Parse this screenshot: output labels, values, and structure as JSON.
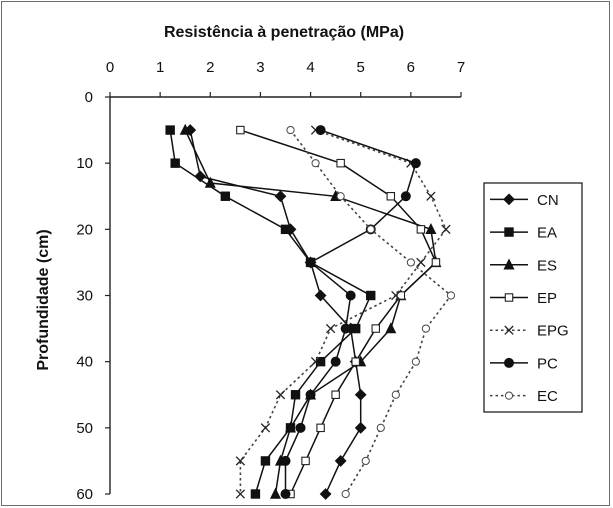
{
  "chart_data": {
    "type": "line",
    "title": "Resistência à penetração (MPa)",
    "xlabel": "Resistência à penetração (MPa)",
    "ylabel": "Profundidade (cm)",
    "x_axis_position": "top",
    "xlim": [
      0,
      7
    ],
    "ylim": [
      0,
      60
    ],
    "y_reversed": true,
    "xticks": [
      "0",
      "1",
      "2",
      "3",
      "4",
      "5",
      "6",
      "7"
    ],
    "yticks": [
      "0",
      "10",
      "20",
      "30",
      "40",
      "50",
      "60"
    ],
    "legend_position": "right",
    "grid": false,
    "series": [
      {
        "name": "CN",
        "marker": "diamond",
        "dash": "solid",
        "points": [
          [
            1.6,
            5
          ],
          [
            1.8,
            12
          ],
          [
            3.4,
            15
          ],
          [
            3.6,
            20
          ],
          [
            4.0,
            25
          ],
          [
            4.2,
            30
          ],
          [
            4.8,
            35
          ],
          [
            4.9,
            40
          ],
          [
            5.0,
            45
          ],
          [
            5.0,
            50
          ],
          [
            4.6,
            55
          ],
          [
            4.3,
            60
          ]
        ]
      },
      {
        "name": "EA",
        "marker": "square",
        "dash": "solid",
        "points": [
          [
            1.2,
            5
          ],
          [
            1.3,
            10
          ],
          [
            2.3,
            15
          ],
          [
            3.5,
            20
          ],
          [
            4.0,
            25
          ],
          [
            5.2,
            30
          ],
          [
            4.9,
            35
          ],
          [
            4.2,
            40
          ],
          [
            3.7,
            45
          ],
          [
            3.6,
            50
          ],
          [
            3.1,
            55
          ],
          [
            2.9,
            60
          ]
        ]
      },
      {
        "name": "ES",
        "marker": "triangle",
        "dash": "solid",
        "points": [
          [
            1.5,
            5
          ],
          [
            2.0,
            13
          ],
          [
            4.5,
            15
          ],
          [
            6.4,
            20
          ],
          [
            6.5,
            25
          ],
          [
            5.8,
            30
          ],
          [
            5.6,
            35
          ],
          [
            5.0,
            40
          ],
          [
            4.0,
            45
          ],
          [
            3.6,
            50
          ],
          [
            3.4,
            55
          ],
          [
            3.3,
            60
          ]
        ]
      },
      {
        "name": "EP",
        "marker": "open-square",
        "dash": "solid",
        "points": [
          [
            2.6,
            5
          ],
          [
            4.6,
            10
          ],
          [
            5.6,
            15
          ],
          [
            6.2,
            20
          ],
          [
            6.5,
            25
          ],
          [
            5.8,
            30
          ],
          [
            5.3,
            35
          ],
          [
            4.9,
            40
          ],
          [
            4.5,
            45
          ],
          [
            4.2,
            50
          ],
          [
            3.9,
            55
          ],
          [
            3.6,
            60
          ]
        ]
      },
      {
        "name": "EPG",
        "marker": "x",
        "dash": "dotted",
        "points": [
          [
            4.1,
            5
          ],
          [
            6.0,
            10
          ],
          [
            6.4,
            15
          ],
          [
            6.7,
            20
          ],
          [
            6.2,
            25
          ],
          [
            5.7,
            30
          ],
          [
            4.4,
            35
          ],
          [
            4.1,
            40
          ],
          [
            3.4,
            45
          ],
          [
            3.1,
            50
          ],
          [
            2.6,
            55
          ],
          [
            2.6,
            60
          ]
        ]
      },
      {
        "name": "PC",
        "marker": "circle",
        "dash": "solid",
        "points": [
          [
            4.2,
            5
          ],
          [
            6.1,
            10
          ],
          [
            5.9,
            15
          ],
          [
            5.2,
            20
          ],
          [
            4.0,
            25
          ],
          [
            4.8,
            30
          ],
          [
            4.7,
            35
          ],
          [
            4.5,
            40
          ],
          [
            4.0,
            45
          ],
          [
            3.8,
            50
          ],
          [
            3.5,
            55
          ],
          [
            3.5,
            60
          ]
        ]
      },
      {
        "name": "EC",
        "marker": "open-circle",
        "dash": "dotted",
        "points": [
          [
            3.6,
            5
          ],
          [
            4.1,
            10
          ],
          [
            4.6,
            15
          ],
          [
            5.2,
            20
          ],
          [
            6.0,
            25
          ],
          [
            6.8,
            30
          ],
          [
            6.3,
            35
          ],
          [
            6.1,
            40
          ],
          [
            5.7,
            45
          ],
          [
            5.4,
            50
          ],
          [
            5.1,
            55
          ],
          [
            4.7,
            60
          ]
        ]
      }
    ]
  }
}
